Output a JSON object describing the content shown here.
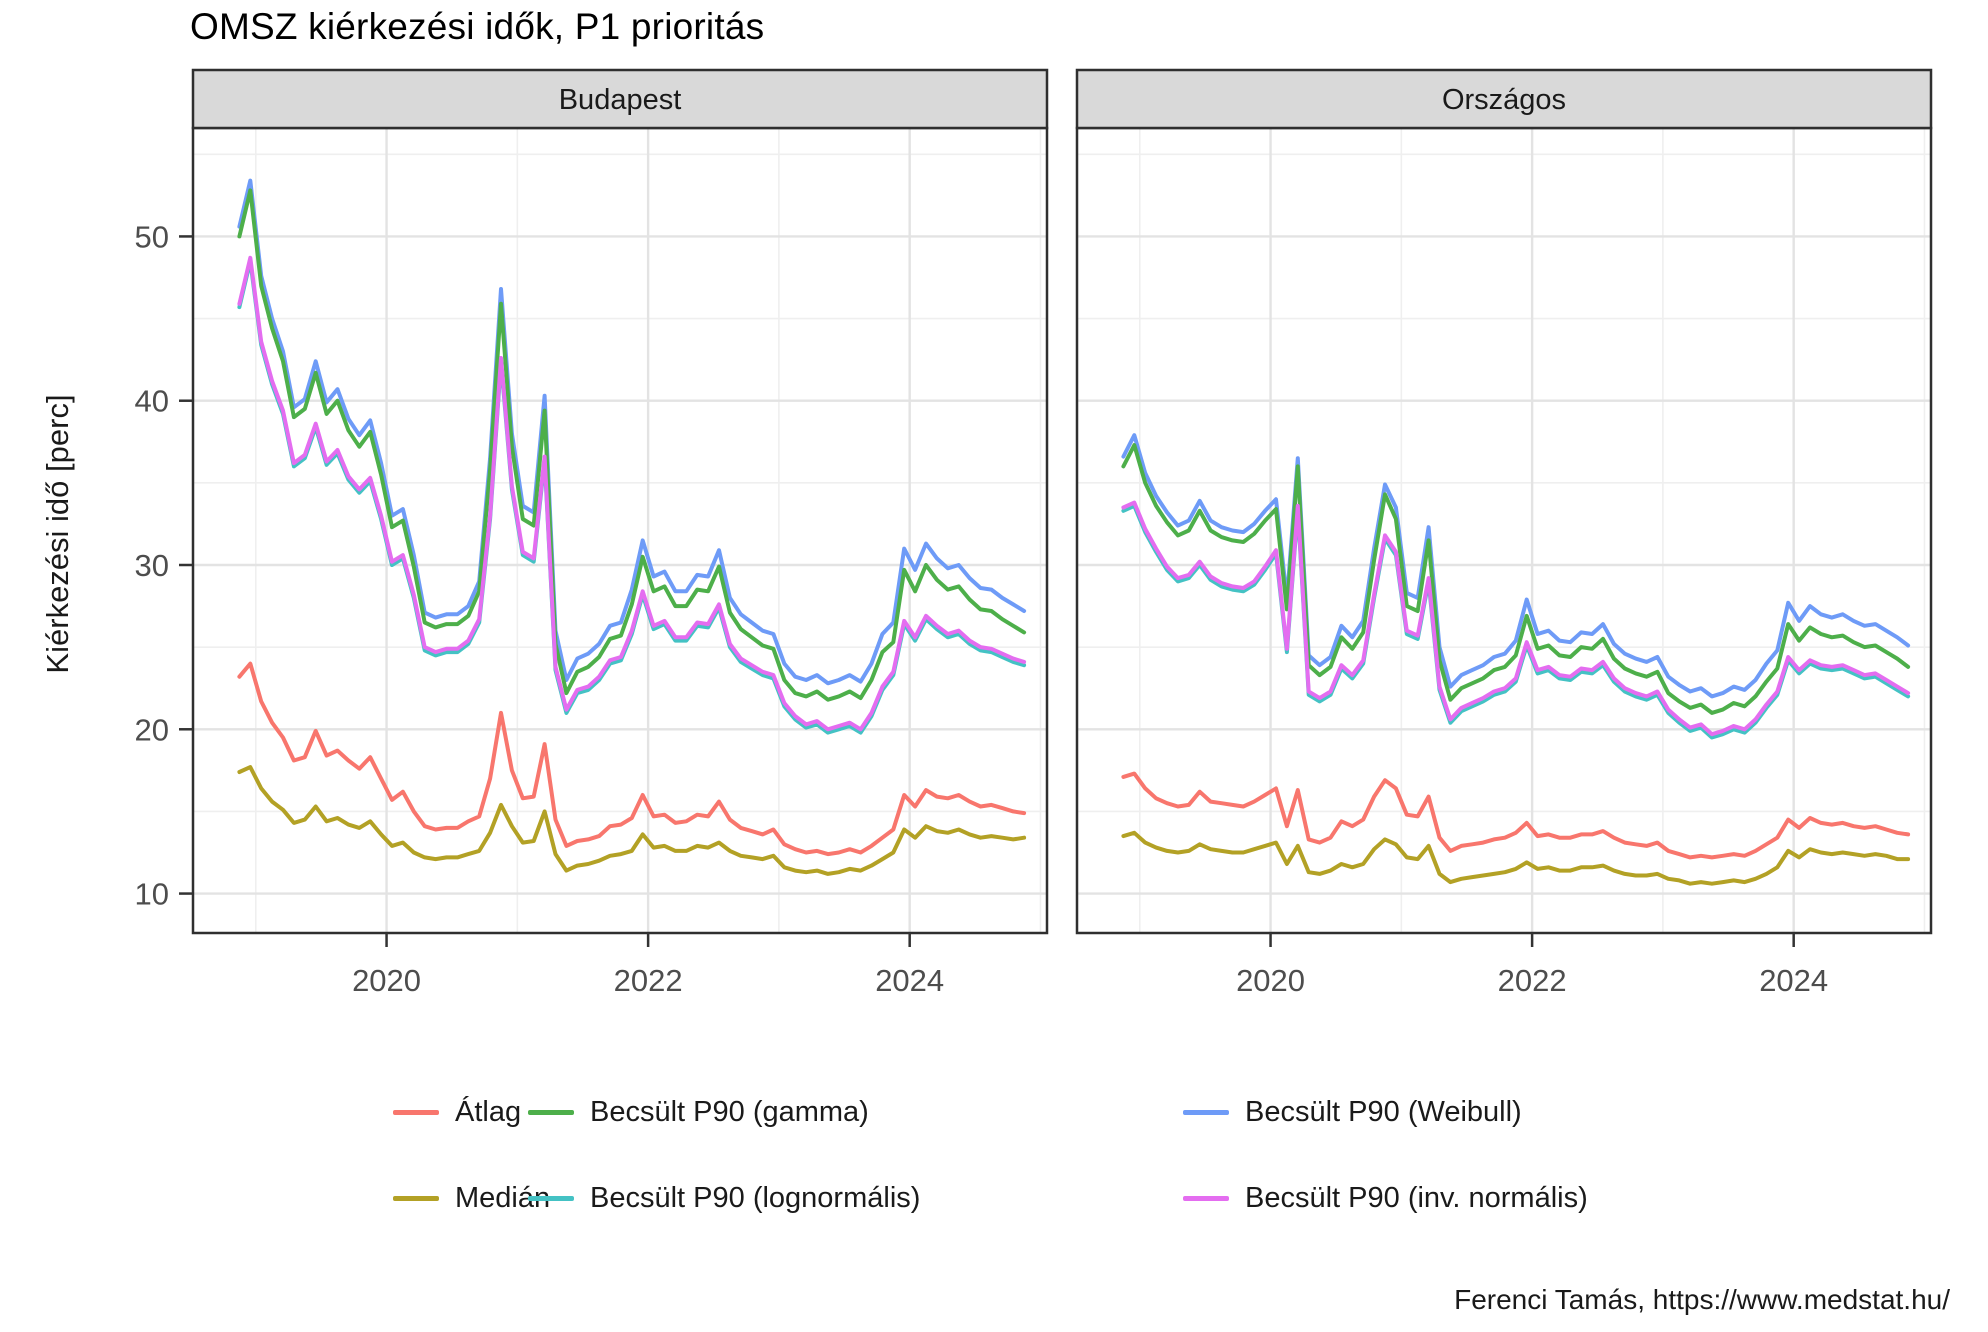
{
  "title": "OMSZ kiérkezési idők, P1 prioritás",
  "caption": "Ferenci Tamás, https://www.medstat.hu/",
  "y_axis_title": "Kiérkezési idő [perc]",
  "colors": {
    "atlag": "#F8766D",
    "median": "#B3A125",
    "gamma": "#4DAF4A",
    "lognormal": "#44C2C4",
    "weibull": "#6E9BF7",
    "invnormal": "#E46DF0",
    "grid_major": "#E3E3E3",
    "grid_minor": "#EFEFEF",
    "panel_border": "#2F2F2F",
    "strip_bg": "#D9D9D9",
    "tick_text": "#4D4D4D"
  },
  "legend": {
    "rows": [
      [
        {
          "id": "atlag",
          "label": "Átlag"
        },
        {
          "id": "gamma",
          "label": "Becsült P90 (gamma)"
        },
        {
          "id": "weibull",
          "label": "Becsült P90 (Weibull)"
        }
      ],
      [
        {
          "id": "median",
          "label": "Medián"
        },
        {
          "id": "lognormal",
          "label": "Becsült P90 (lognormális)"
        },
        {
          "id": "invnormal",
          "label": "Becsült P90 (inv. normális)"
        }
      ]
    ]
  },
  "chart_data": {
    "type": "line",
    "title": "OMSZ kiérkezési idők, P1 prioritás",
    "ylabel": "Kiérkezési idő [perc]",
    "x_start": {
      "year": 2018,
      "month": 11
    },
    "x_step": "1 month",
    "x_domain": [
      2018.52,
      2025.05
    ],
    "x_major_ticks": [
      2020,
      2022,
      2024
    ],
    "x_minor_ticks": [
      2019,
      2021,
      2023,
      2025
    ],
    "y_domain": [
      7.6,
      56.6
    ],
    "y_major_ticks": [
      10,
      20,
      30,
      40,
      50
    ],
    "y_minor_ticks": [
      15,
      25,
      35,
      45,
      55
    ],
    "grid": true,
    "legend_position": "bottom",
    "series_order": [
      "weibull",
      "gamma",
      "lognormal",
      "invnormal",
      "atlag",
      "median"
    ],
    "series_names": {
      "atlag": "Átlag",
      "median": "Medián",
      "gamma": "Becsült P90 (gamma)",
      "lognormal": "Becsült P90 (lognormális)",
      "weibull": "Becsült P90 (Weibull)",
      "invnormal": "Becsült P90 (inv. normális)"
    },
    "facets": [
      {
        "label": "Budapest",
        "series": {
          "weibull": [
            50.6,
            53.4,
            47.6,
            45.0,
            43.0,
            39.6,
            40.1,
            42.4,
            39.9,
            40.7,
            38.9,
            37.9,
            38.8,
            36.2,
            33.0,
            33.4,
            30.6,
            27.1,
            26.8,
            27.0,
            27.0,
            27.5,
            29.0,
            36.5,
            46.8,
            38.0,
            33.6,
            33.2,
            40.3,
            26.0,
            23.0,
            24.3,
            24.6,
            25.2,
            26.3,
            26.5,
            28.5,
            31.5,
            29.3,
            29.6,
            28.4,
            28.4,
            29.4,
            29.3,
            30.9,
            28.0,
            27.0,
            26.5,
            26.0,
            25.8,
            24.0,
            23.2,
            23.0,
            23.3,
            22.8,
            23.0,
            23.3,
            22.9,
            24.0,
            25.8,
            26.5,
            31.0,
            29.7,
            31.3,
            30.4,
            29.8,
            30.0,
            29.2,
            28.6,
            28.5,
            28.0,
            27.6,
            27.2
          ],
          "gamma": [
            50.0,
            52.8,
            47.0,
            44.4,
            42.4,
            39.0,
            39.5,
            41.7,
            39.2,
            40.0,
            38.2,
            37.2,
            38.1,
            35.5,
            32.3,
            32.7,
            29.9,
            26.5,
            26.2,
            26.4,
            26.4,
            26.9,
            28.4,
            35.8,
            45.9,
            37.2,
            32.8,
            32.4,
            39.4,
            25.2,
            22.2,
            23.5,
            23.8,
            24.4,
            25.5,
            25.7,
            27.6,
            30.5,
            28.4,
            28.7,
            27.5,
            27.5,
            28.5,
            28.4,
            29.9,
            27.1,
            26.1,
            25.6,
            25.1,
            24.9,
            23.0,
            22.2,
            22.0,
            22.3,
            21.8,
            22.0,
            22.3,
            21.9,
            23.0,
            24.7,
            25.3,
            29.7,
            28.4,
            30.0,
            29.1,
            28.5,
            28.7,
            27.9,
            27.3,
            27.2,
            26.7,
            26.3,
            25.9
          ],
          "lognormal": [
            45.7,
            48.5,
            43.4,
            41.0,
            39.2,
            36.0,
            36.5,
            38.4,
            36.1,
            36.8,
            35.2,
            34.4,
            35.1,
            32.8,
            30.0,
            30.4,
            28.0,
            24.8,
            24.5,
            24.7,
            24.7,
            25.2,
            26.5,
            32.8,
            42.4,
            34.6,
            30.6,
            30.2,
            36.4,
            23.6,
            21.0,
            22.2,
            22.4,
            23.0,
            24.0,
            24.2,
            25.8,
            28.2,
            26.1,
            26.4,
            25.4,
            25.4,
            26.3,
            26.2,
            27.4,
            25.0,
            24.1,
            23.7,
            23.3,
            23.1,
            21.4,
            20.6,
            20.1,
            20.3,
            19.8,
            20.0,
            20.2,
            19.8,
            20.8,
            22.4,
            23.3,
            26.4,
            25.4,
            26.7,
            26.1,
            25.6,
            25.8,
            25.2,
            24.8,
            24.7,
            24.4,
            24.1,
            23.9
          ],
          "invnormal": [
            45.9,
            48.7,
            43.6,
            41.2,
            39.4,
            36.2,
            36.7,
            38.6,
            36.3,
            37.0,
            35.4,
            34.6,
            35.3,
            33.0,
            30.2,
            30.6,
            28.2,
            25.0,
            24.7,
            24.9,
            24.9,
            25.4,
            26.7,
            33.0,
            42.6,
            34.8,
            30.8,
            30.4,
            36.6,
            23.8,
            21.2,
            22.4,
            22.6,
            23.2,
            24.2,
            24.4,
            26.0,
            28.4,
            26.3,
            26.6,
            25.6,
            25.6,
            26.5,
            26.4,
            27.6,
            25.2,
            24.3,
            23.9,
            23.5,
            23.3,
            21.6,
            20.8,
            20.3,
            20.5,
            20.0,
            20.2,
            20.4,
            20.0,
            21.0,
            22.6,
            23.5,
            26.6,
            25.6,
            26.9,
            26.3,
            25.8,
            26.0,
            25.4,
            25.0,
            24.9,
            24.6,
            24.3,
            24.1
          ],
          "atlag": [
            23.2,
            24.0,
            21.7,
            20.4,
            19.5,
            18.1,
            18.3,
            19.9,
            18.4,
            18.7,
            18.1,
            17.6,
            18.3,
            17.0,
            15.7,
            16.2,
            15.0,
            14.1,
            13.9,
            14.0,
            14.0,
            14.4,
            14.7,
            17.0,
            21.0,
            17.5,
            15.8,
            15.9,
            19.1,
            14.5,
            12.9,
            13.2,
            13.3,
            13.5,
            14.1,
            14.2,
            14.6,
            16.0,
            14.7,
            14.8,
            14.3,
            14.4,
            14.8,
            14.7,
            15.6,
            14.5,
            14.0,
            13.8,
            13.6,
            13.9,
            13.0,
            12.7,
            12.5,
            12.6,
            12.4,
            12.5,
            12.7,
            12.5,
            12.9,
            13.4,
            13.9,
            16.0,
            15.3,
            16.3,
            15.9,
            15.8,
            16.0,
            15.6,
            15.3,
            15.4,
            15.2,
            15.0,
            14.9
          ],
          "median": [
            17.4,
            17.7,
            16.4,
            15.6,
            15.1,
            14.3,
            14.5,
            15.3,
            14.4,
            14.6,
            14.2,
            14.0,
            14.4,
            13.6,
            12.9,
            13.1,
            12.5,
            12.2,
            12.1,
            12.2,
            12.2,
            12.4,
            12.6,
            13.7,
            15.4,
            14.1,
            13.1,
            13.2,
            15.0,
            12.4,
            11.4,
            11.7,
            11.8,
            12.0,
            12.3,
            12.4,
            12.6,
            13.6,
            12.8,
            12.9,
            12.6,
            12.6,
            12.9,
            12.8,
            13.1,
            12.6,
            12.3,
            12.2,
            12.1,
            12.3,
            11.6,
            11.4,
            11.3,
            11.4,
            11.2,
            11.3,
            11.5,
            11.4,
            11.7,
            12.1,
            12.5,
            13.9,
            13.4,
            14.1,
            13.8,
            13.7,
            13.9,
            13.6,
            13.4,
            13.5,
            13.4,
            13.3,
            13.4
          ]
        }
      },
      {
        "label": "Országos",
        "series": {
          "weibull": [
            36.6,
            37.9,
            35.6,
            34.2,
            33.2,
            32.4,
            32.7,
            33.9,
            32.7,
            32.3,
            32.1,
            32.0,
            32.5,
            33.3,
            34.0,
            27.9,
            36.5,
            24.5,
            23.9,
            24.4,
            26.3,
            25.6,
            26.6,
            31.0,
            34.9,
            33.5,
            28.3,
            28.0,
            32.3,
            25.0,
            22.6,
            23.3,
            23.6,
            23.9,
            24.4,
            24.6,
            25.4,
            27.9,
            25.8,
            26.0,
            25.4,
            25.3,
            25.9,
            25.8,
            26.4,
            25.2,
            24.6,
            24.3,
            24.1,
            24.4,
            23.2,
            22.7,
            22.3,
            22.5,
            22.0,
            22.2,
            22.6,
            22.4,
            23.0,
            24.0,
            24.8,
            27.7,
            26.6,
            27.5,
            27.0,
            26.8,
            27.0,
            26.6,
            26.3,
            26.4,
            26.0,
            25.6,
            25.1
          ],
          "gamma": [
            36.0,
            37.3,
            35.0,
            33.6,
            32.6,
            31.8,
            32.1,
            33.3,
            32.1,
            31.7,
            31.5,
            31.4,
            31.9,
            32.7,
            33.4,
            27.3,
            36.0,
            23.9,
            23.3,
            23.8,
            25.6,
            24.9,
            25.9,
            30.3,
            34.3,
            32.8,
            27.5,
            27.2,
            31.5,
            24.2,
            21.8,
            22.5,
            22.8,
            23.1,
            23.6,
            23.8,
            24.5,
            26.9,
            24.9,
            25.1,
            24.5,
            24.4,
            25.0,
            24.9,
            25.5,
            24.3,
            23.7,
            23.4,
            23.2,
            23.5,
            22.2,
            21.7,
            21.3,
            21.5,
            21.0,
            21.2,
            21.6,
            21.4,
            22.0,
            22.9,
            23.7,
            26.4,
            25.4,
            26.2,
            25.8,
            25.6,
            25.7,
            25.3,
            25.0,
            25.1,
            24.7,
            24.3,
            23.8
          ],
          "lognormal": [
            33.3,
            33.6,
            32.0,
            30.8,
            29.7,
            29.0,
            29.2,
            30.0,
            29.1,
            28.7,
            28.5,
            28.4,
            28.8,
            29.7,
            30.7,
            24.7,
            33.4,
            22.1,
            21.7,
            22.1,
            23.7,
            23.1,
            24.0,
            28.0,
            31.6,
            30.6,
            25.8,
            25.5,
            29.0,
            22.4,
            20.4,
            21.1,
            21.4,
            21.7,
            22.1,
            22.3,
            22.9,
            25.1,
            23.4,
            23.6,
            23.1,
            23.0,
            23.5,
            23.4,
            23.9,
            22.9,
            22.3,
            22.0,
            21.8,
            22.1,
            21.0,
            20.4,
            19.9,
            20.1,
            19.5,
            19.7,
            20.0,
            19.8,
            20.4,
            21.3,
            22.1,
            24.2,
            23.4,
            24.0,
            23.7,
            23.6,
            23.7,
            23.4,
            23.1,
            23.2,
            22.8,
            22.4,
            22.0
          ],
          "invnormal": [
            33.5,
            33.8,
            32.2,
            31.0,
            29.9,
            29.2,
            29.4,
            30.2,
            29.3,
            28.9,
            28.7,
            28.6,
            29.0,
            29.9,
            30.9,
            24.9,
            33.6,
            22.3,
            21.9,
            22.3,
            23.9,
            23.3,
            24.2,
            28.2,
            31.8,
            30.8,
            26.0,
            25.7,
            29.2,
            22.6,
            20.6,
            21.3,
            21.6,
            21.9,
            22.3,
            22.5,
            23.1,
            25.3,
            23.6,
            23.8,
            23.3,
            23.2,
            23.7,
            23.6,
            24.1,
            23.1,
            22.5,
            22.2,
            22.0,
            22.3,
            21.2,
            20.6,
            20.1,
            20.3,
            19.7,
            19.9,
            20.2,
            20.0,
            20.6,
            21.5,
            22.3,
            24.4,
            23.6,
            24.2,
            23.9,
            23.8,
            23.9,
            23.6,
            23.3,
            23.4,
            23.0,
            22.6,
            22.2
          ],
          "atlag": [
            17.1,
            17.3,
            16.4,
            15.8,
            15.5,
            15.3,
            15.4,
            16.2,
            15.6,
            15.5,
            15.4,
            15.3,
            15.6,
            16.0,
            16.4,
            14.1,
            16.3,
            13.3,
            13.1,
            13.4,
            14.4,
            14.1,
            14.5,
            15.9,
            16.9,
            16.4,
            14.8,
            14.7,
            15.9,
            13.4,
            12.6,
            12.9,
            13.0,
            13.1,
            13.3,
            13.4,
            13.7,
            14.3,
            13.5,
            13.6,
            13.4,
            13.4,
            13.6,
            13.6,
            13.8,
            13.4,
            13.1,
            13.0,
            12.9,
            13.1,
            12.6,
            12.4,
            12.2,
            12.3,
            12.2,
            12.3,
            12.4,
            12.3,
            12.6,
            13.0,
            13.4,
            14.5,
            14.0,
            14.6,
            14.3,
            14.2,
            14.3,
            14.1,
            14.0,
            14.1,
            13.9,
            13.7,
            13.6
          ],
          "median": [
            13.5,
            13.7,
            13.1,
            12.8,
            12.6,
            12.5,
            12.6,
            13.0,
            12.7,
            12.6,
            12.5,
            12.5,
            12.7,
            12.9,
            13.1,
            11.8,
            12.9,
            11.3,
            11.2,
            11.4,
            11.8,
            11.6,
            11.8,
            12.7,
            13.3,
            13.0,
            12.2,
            12.1,
            12.9,
            11.2,
            10.7,
            10.9,
            11.0,
            11.1,
            11.2,
            11.3,
            11.5,
            11.9,
            11.5,
            11.6,
            11.4,
            11.4,
            11.6,
            11.6,
            11.7,
            11.4,
            11.2,
            11.1,
            11.1,
            11.2,
            10.9,
            10.8,
            10.6,
            10.7,
            10.6,
            10.7,
            10.8,
            10.7,
            10.9,
            11.2,
            11.6,
            12.6,
            12.2,
            12.7,
            12.5,
            12.4,
            12.5,
            12.4,
            12.3,
            12.4,
            12.3,
            12.1,
            12.1
          ]
        }
      }
    ]
  }
}
